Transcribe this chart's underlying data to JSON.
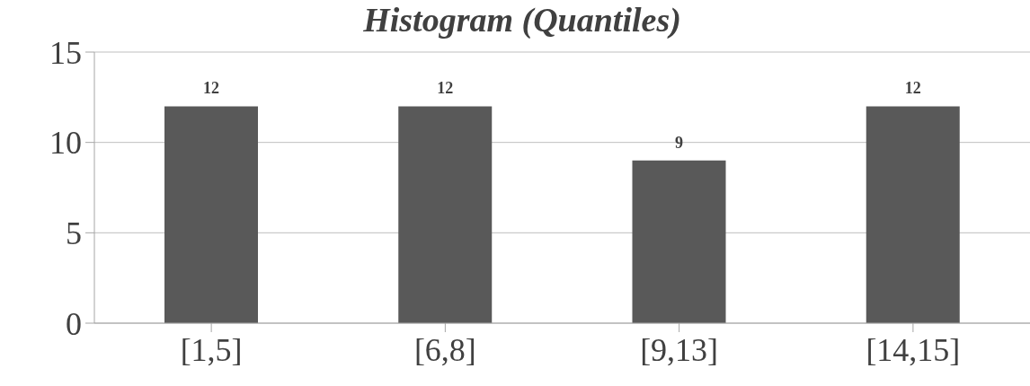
{
  "chart_data": {
    "type": "bar",
    "title": "Histogram (Quantiles)",
    "categories": [
      "[1,5]",
      "[6,8]",
      "[9,13]",
      "[14,15]"
    ],
    "values": [
      12,
      12,
      9,
      12
    ],
    "color": "#595959",
    "ylim": [
      0,
      15
    ],
    "yticks": [
      0,
      5,
      10,
      15
    ],
    "grid": "y",
    "data_labels": true
  }
}
